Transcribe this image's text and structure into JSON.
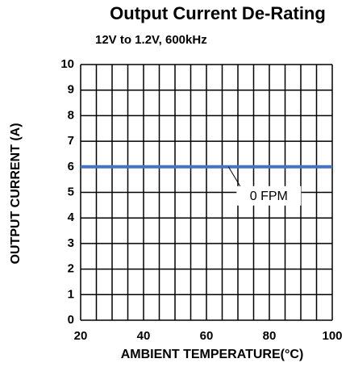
{
  "chart_data": {
    "type": "line",
    "title": "Output Current De-Rating",
    "subtitle": "12V to 1.2V, 600kHz",
    "x_label": "AMBIENT TEMPERATURE(°C)",
    "y_label": "OUTPUT CURRENT (A)",
    "x": [
      20,
      100
    ],
    "series": [
      {
        "name": "0 FPM",
        "color": "#4472c4",
        "values": [
          6,
          6
        ]
      }
    ],
    "annotations": [
      {
        "text": "0 FPM",
        "xy": [
          67,
          6
        ]
      }
    ],
    "xlim": [
      20,
      100
    ],
    "xticks": [
      20,
      40,
      60,
      80,
      100
    ],
    "xgrid": [
      20,
      25,
      30,
      35,
      40,
      45,
      50,
      55,
      60,
      65,
      70,
      75,
      80,
      85,
      90,
      95,
      100
    ],
    "ylim": [
      0,
      10
    ],
    "yticks": [
      0,
      1,
      2,
      3,
      4,
      5,
      6,
      7,
      8,
      9,
      10
    ],
    "grid": true
  }
}
